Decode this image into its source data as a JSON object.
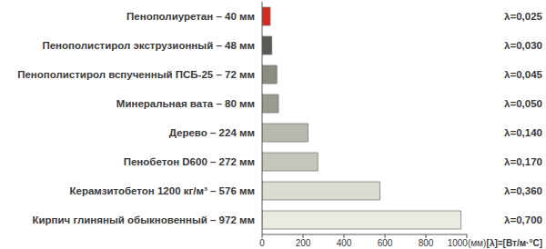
{
  "chart_data": {
    "type": "bar",
    "orientation": "horizontal",
    "categories": [
      "Пенополиуретан – 40 мм",
      "Пенополистирол экструзионный – 48 мм",
      "Пенополистирол вспученный ПСБ-25 – 72 мм",
      "Минеральная вата – 80 мм",
      "Дерево – 224 мм",
      "Пенобетон D600 – 272 мм",
      "Керамзитобетон 1200 кг/м³ – 576 мм",
      "Кирпич глиняный обыкновенный – 972 мм"
    ],
    "values": [
      40,
      48,
      72,
      80,
      224,
      272,
      576,
      972
    ],
    "colors": [
      "#d42a20",
      "#5a5a55",
      "#8c8c82",
      "#9a9a90",
      "#b8b8ae",
      "#c6c6bc",
      "#dcdcd4",
      "#ebebe4"
    ],
    "xlim": [
      0,
      1000
    ],
    "xticks": [
      0,
      200,
      400,
      600,
      800,
      {
        "value": 1000,
        "label": "1000(мм)"
      }
    ],
    "annotations": [
      "λ=0,025",
      "λ=0,030",
      "λ=0,045",
      "λ=0,050",
      "λ=0,140",
      "λ=0,170",
      "λ=0,360",
      "λ=0,700"
    ],
    "note": "[λ]=[Вт/м·°С]",
    "grid": false
  }
}
